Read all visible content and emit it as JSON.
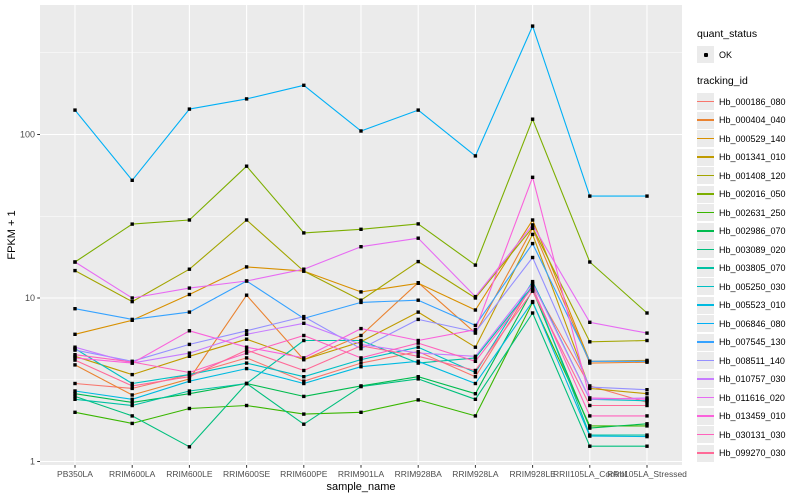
{
  "chart_data": {
    "type": "line",
    "title": "",
    "xlabel": "sample_name",
    "ylabel": "FPKM + 1",
    "y_scale": "log10",
    "y_ticks": [
      1,
      10,
      100
    ],
    "y_tick_labels": [
      "1",
      "10",
      "100"
    ],
    "y_minor_ticks": [
      3.162,
      31.62,
      316.2
    ],
    "ylim": [
      0.95,
      620
    ],
    "grid": true,
    "legend_position": "right",
    "panel_background": "#EBEBEB",
    "gridline_color": "#FFFFFF",
    "axis_text_color": "#4D4D4D",
    "point_color": "#000000",
    "categories": [
      "PB350LA",
      "RRIM600LA",
      "RRIM600LE",
      "RRIM600SE",
      "RRIM600PE",
      "RRIM901LA",
      "RRIM928BA",
      "RRIM928LA",
      "RRIM928LE",
      "RRII105LA_Control",
      "RRII105LA_Stressed"
    ],
    "series": [
      {
        "name": "Hb_000186_080",
        "color": "#F8766D",
        "values": [
          3.0,
          2.8,
          3.4,
          4.3,
          3.1,
          4.0,
          4.7,
          3.3,
          12.0,
          2.9,
          2.3
        ]
      },
      {
        "name": "Hb_000404_040",
        "color": "#EA8331",
        "values": [
          3.9,
          2.55,
          3.2,
          10.4,
          4.2,
          5.9,
          12.4,
          6.1,
          26.7,
          4.0,
          4.05
        ]
      },
      {
        "name": "Hb_000529_140",
        "color": "#D89000",
        "values": [
          6.0,
          7.3,
          10.5,
          15.5,
          14.6,
          10.9,
          12.3,
          8.45,
          30.0,
          4.1,
          4.15
        ]
      },
      {
        "name": "Hb_001341_010",
        "color": "#C09B00",
        "values": [
          4.4,
          3.4,
          4.4,
          5.6,
          4.2,
          5.4,
          8.2,
          5.0,
          24.5,
          2.8,
          2.6
        ]
      },
      {
        "name": "Hb_001408_120",
        "color": "#A3A500",
        "values": [
          14.7,
          9.5,
          15.0,
          30.0,
          14.6,
          9.7,
          16.7,
          10.0,
          27.0,
          5.4,
          5.5
        ]
      },
      {
        "name": "Hb_002016_050",
        "color": "#7CAE00",
        "values": [
          16.6,
          28.3,
          30.0,
          64.0,
          25.0,
          26.3,
          28.4,
          15.9,
          124.0,
          16.6,
          8.1
        ]
      },
      {
        "name": "Hb_002631_250",
        "color": "#39B600",
        "values": [
          2.0,
          1.71,
          2.11,
          2.2,
          1.95,
          2.0,
          2.38,
          1.9,
          9.4,
          1.65,
          1.65
        ]
      },
      {
        "name": "Hb_002986_070",
        "color": "#00BB4E",
        "values": [
          2.6,
          2.3,
          2.6,
          3.0,
          2.5,
          2.9,
          3.3,
          2.6,
          11.2,
          1.6,
          1.7
        ]
      },
      {
        "name": "Hb_003089_020",
        "color": "#00BF7D",
        "values": [
          2.5,
          1.9,
          1.23,
          3.0,
          1.69,
          2.87,
          3.2,
          2.4,
          8.1,
          1.24,
          1.24
        ]
      },
      {
        "name": "Hb_003805_070",
        "color": "#00C1A3",
        "values": [
          2.4,
          2.2,
          2.7,
          3.0,
          5.5,
          5.5,
          4.0,
          4.3,
          11.8,
          1.45,
          1.45
        ]
      },
      {
        "name": "Hb_005250_030",
        "color": "#00BFC4",
        "values": [
          4.9,
          3.0,
          3.4,
          4.0,
          3.3,
          4.2,
          5.0,
          3.5,
          12.6,
          2.4,
          2.35
        ]
      },
      {
        "name": "Hb_005523_010",
        "color": "#00BAE0",
        "values": [
          2.7,
          2.4,
          3.1,
          3.7,
          3.0,
          3.8,
          4.1,
          3.0,
          9.5,
          1.43,
          1.42
        ]
      },
      {
        "name": "Hb_006846_080",
        "color": "#00B0F6",
        "values": [
          141,
          52.5,
          143,
          165,
          200,
          105,
          141,
          74,
          460,
          42,
          42
        ]
      },
      {
        "name": "Hb_007545_130",
        "color": "#35A2FF",
        "values": [
          8.6,
          7.4,
          8.2,
          12.7,
          7.5,
          9.4,
          9.7,
          6.8,
          21.5,
          4.1,
          4.1
        ]
      },
      {
        "name": "Hb_008511_140",
        "color": "#9590FF",
        "values": [
          4.8,
          4.1,
          5.2,
          6.3,
          7.7,
          4.9,
          7.4,
          6.2,
          17.7,
          2.85,
          2.75
        ]
      },
      {
        "name": "Hb_010757_030",
        "color": "#C77CFF",
        "values": [
          5.0,
          4.0,
          4.6,
          6.0,
          7.0,
          5.2,
          4.6,
          4.4,
          12.3,
          2.4,
          2.45
        ]
      },
      {
        "name": "Hb_011616_020",
        "color": "#E76BF3",
        "values": [
          16.6,
          10.0,
          11.5,
          12.7,
          15.0,
          20.6,
          23.2,
          10.2,
          28.0,
          7.1,
          6.1
        ]
      },
      {
        "name": "Hb_013459_010",
        "color": "#FA62DB",
        "values": [
          4.3,
          4.0,
          6.3,
          5.0,
          4.3,
          6.5,
          5.5,
          6.4,
          54.7,
          2.45,
          2.4
        ]
      },
      {
        "name": "Hb_030131_030",
        "color": "#FF62BC",
        "values": [
          4.5,
          4.06,
          3.5,
          4.6,
          5.9,
          4.3,
          5.3,
          4.1,
          11.6,
          1.9,
          1.9
        ]
      },
      {
        "name": "Hb_099270_030",
        "color": "#FF6A98",
        "values": [
          4.17,
          2.9,
          3.3,
          4.8,
          3.6,
          5.1,
          4.4,
          3.6,
          11.0,
          2.2,
          2.2
        ]
      }
    ]
  },
  "legend": {
    "quant_status_title": "quant_status",
    "quant_status_items": [
      {
        "label": "OK",
        "symbol": "point",
        "color": "#000000"
      }
    ],
    "tracking_title": "tracking_id"
  }
}
